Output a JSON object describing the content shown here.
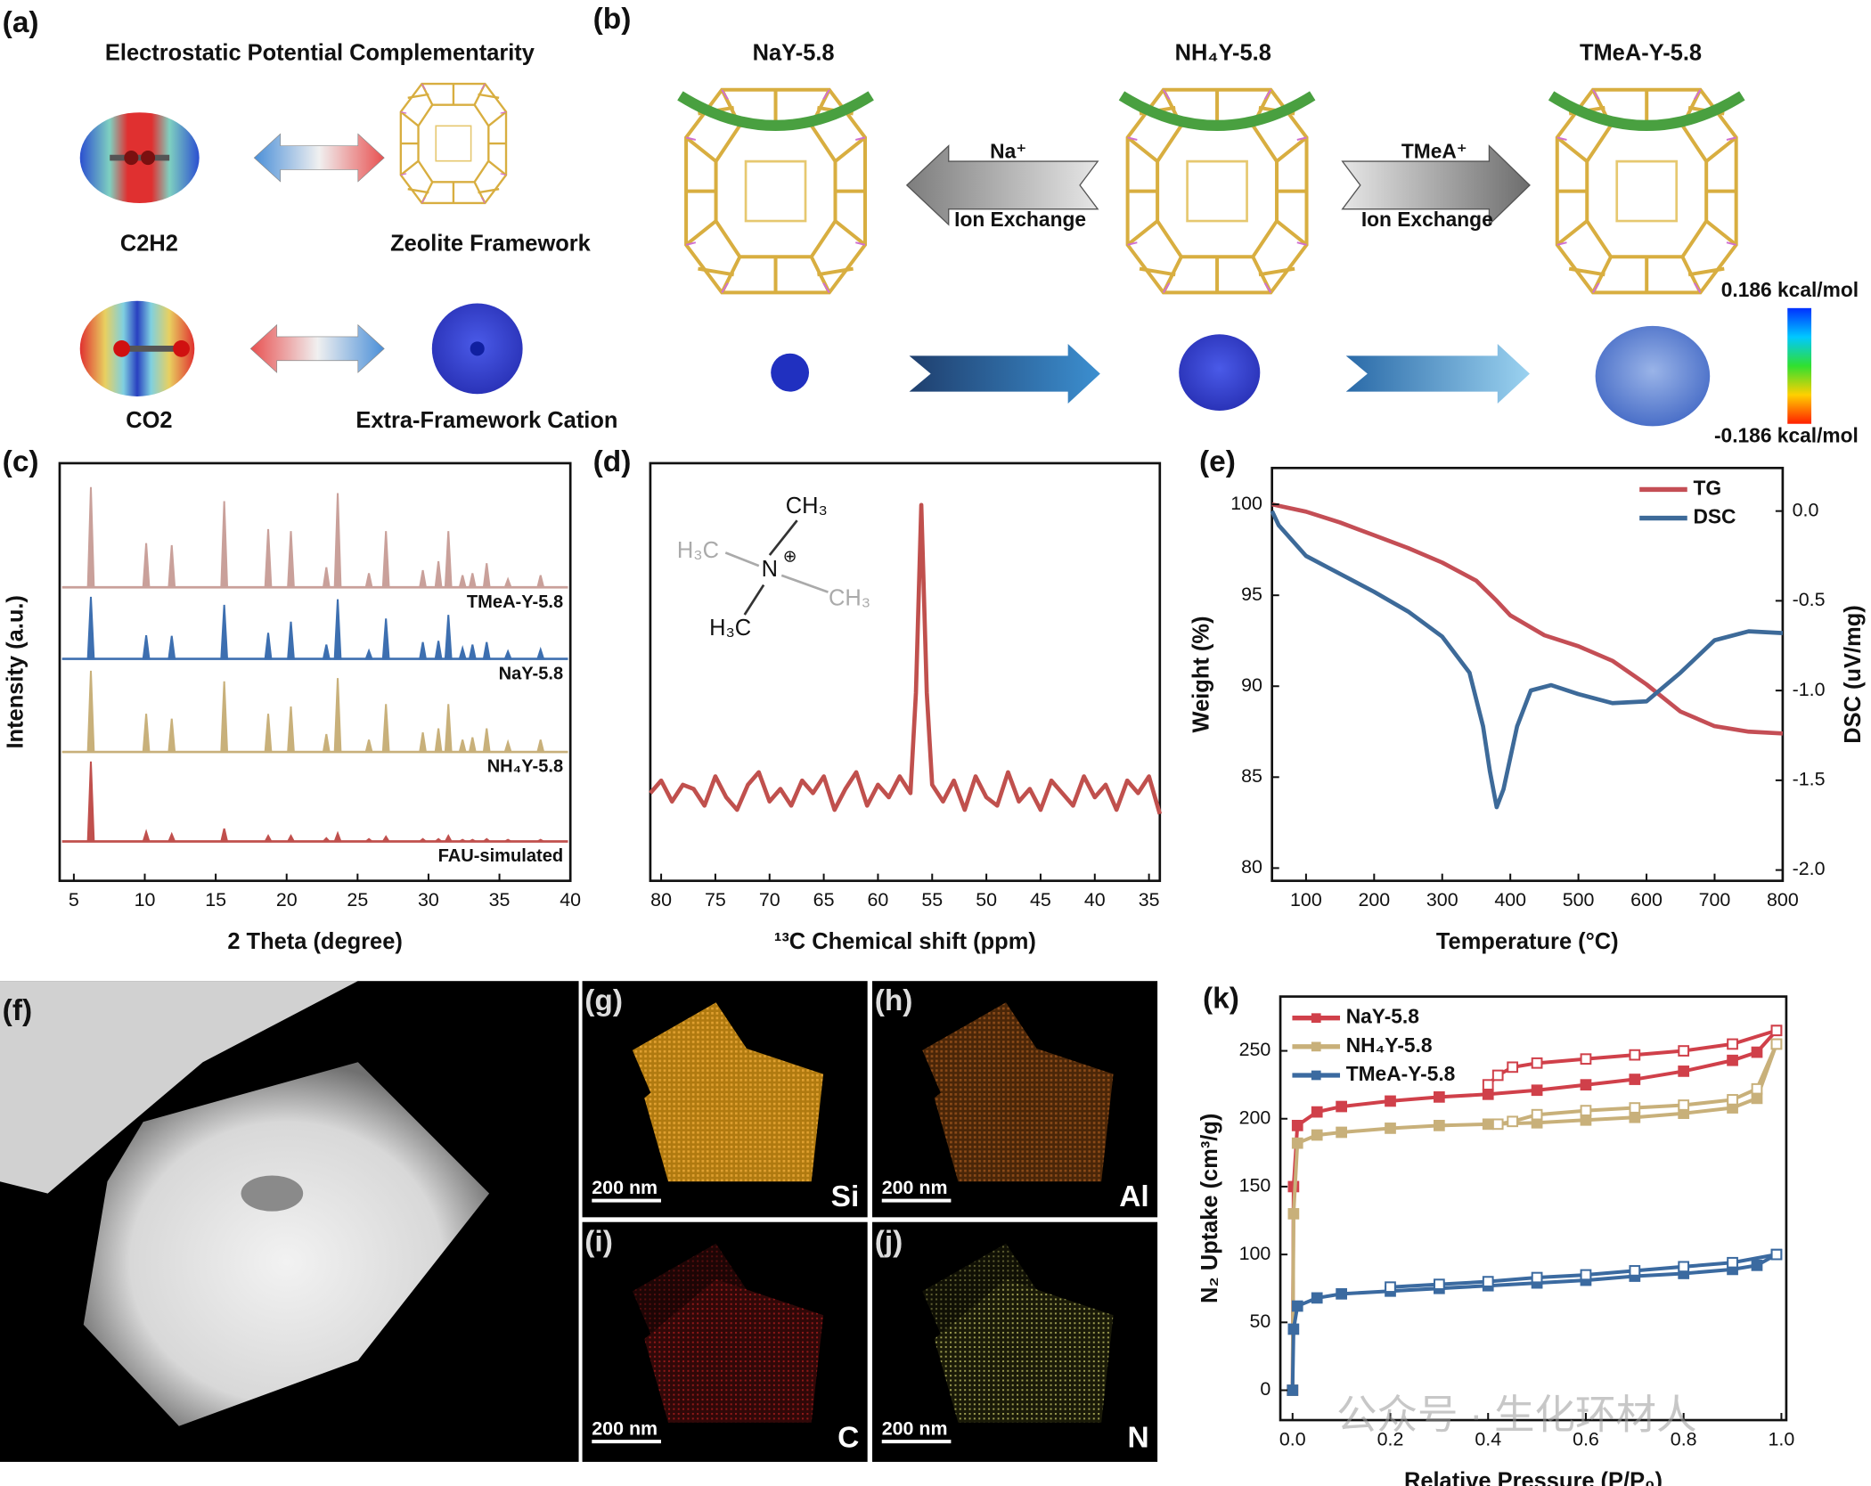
{
  "panels": {
    "a": {
      "label": "(a)",
      "title": "Electrostatic Potential Complementarity",
      "molecule_1": "C2H2",
      "framework": "Zeolite Framework",
      "molecule_2": "CO2",
      "cation": "Extra-Framework Cation"
    },
    "b": {
      "label": "(b)",
      "samples": [
        "NaY-5.8",
        "NH₄Y-5.8",
        "TMeA-Y-5.8"
      ],
      "ion_1": "Na⁺",
      "ion_2": "TMeA⁺",
      "exchange": [
        "Ion Exchange",
        "Ion Exchange"
      ],
      "colorbar_max": "0.186 kcal/mol",
      "colorbar_min": "-0.186 kcal/mol"
    },
    "c": {
      "label": "(c)"
    },
    "d": {
      "label": "(d)"
    },
    "e": {
      "label": "(e)"
    },
    "f": {
      "label": "(f)"
    },
    "k": {
      "label": "(k)"
    },
    "tiles": [
      {
        "label": "(g)",
        "element": "Si",
        "scale": "200 nm"
      },
      {
        "label": "(h)",
        "element": "Al",
        "scale": "200 nm"
      },
      {
        "label": "(i)",
        "element": "C",
        "scale": "200 nm"
      },
      {
        "label": "(j)",
        "element": "N",
        "scale": "200 nm"
      }
    ],
    "watermark": "公众号 · 生化环材人"
  },
  "chart_data": [
    {
      "type": "peaks",
      "xlabel": "2 Theta (degree)",
      "ylabel": "Intensity (a.u.)",
      "xlim": [
        4,
        40
      ],
      "xticks": [
        5,
        10,
        15,
        20,
        25,
        30,
        35,
        40
      ],
      "x": [
        6.2,
        10.1,
        11.9,
        15.6,
        18.7,
        20.3,
        22.8,
        23.6,
        25.8,
        27.0,
        29.6,
        30.7,
        31.4,
        32.4,
        33.1,
        34.1,
        35.6,
        37.9
      ],
      "series": [
        {
          "name": "TMeA-Y-5.8",
          "color": "#c9a09a",
          "values": [
            1,
            0.44,
            0.42,
            0.86,
            0.58,
            0.56,
            0.2,
            0.94,
            0.14,
            0.56,
            0.17,
            0.26,
            0.56,
            0.12,
            0.14,
            0.24,
            0.08,
            0.12
          ]
        },
        {
          "name": "NaY-5.8",
          "color": "#3d6fb0",
          "values": [
            1,
            0.38,
            0.37,
            0.87,
            0.42,
            0.6,
            0.23,
            0.96,
            0.13,
            0.65,
            0.27,
            0.29,
            0.71,
            0.17,
            0.23,
            0.27,
            0.12,
            0.15
          ]
        },
        {
          "name": "NH₄Y-5.8",
          "color": "#c8b07a",
          "values": [
            1,
            0.47,
            0.41,
            0.87,
            0.47,
            0.56,
            0.22,
            0.91,
            0.15,
            0.59,
            0.24,
            0.29,
            0.59,
            0.15,
            0.18,
            0.29,
            0.12,
            0.15
          ]
        },
        {
          "name": "FAU-simulated",
          "color": "#c0504d",
          "values": [
            1,
            0.12,
            0.09,
            0.16,
            0.07,
            0.07,
            0.04,
            0.1,
            0.03,
            0.06,
            0.03,
            0.03,
            0.07,
            0.02,
            0.02,
            0.03,
            0.02,
            0.02
          ]
        }
      ]
    },
    {
      "type": "line",
      "xlabel": "¹³C Chemical shift (ppm)",
      "xlim": [
        81,
        34
      ],
      "xticks": [
        80,
        75,
        70,
        65,
        60,
        55,
        50,
        45,
        40,
        35
      ],
      "ylim": [
        0,
        100
      ],
      "structure": [
        "CH₃",
        "H₃C",
        "N",
        "⊕",
        "CH₃",
        "H₃C"
      ],
      "x": [
        81,
        80,
        79,
        78,
        77,
        76,
        75,
        74,
        73,
        72,
        71,
        70,
        69,
        68,
        67,
        66,
        65,
        64,
        63,
        62,
        61,
        60,
        59,
        58,
        57,
        56.5,
        56,
        55.5,
        55,
        54,
        53,
        52,
        51,
        50,
        49,
        48,
        47,
        46,
        45,
        44,
        43,
        42,
        41,
        40,
        39,
        38,
        37,
        36,
        35,
        34
      ],
      "series": [
        {
          "color": "#c0504d",
          "values": [
            21,
            24,
            19,
            23,
            22,
            18,
            25,
            20,
            17,
            23,
            26,
            19,
            22,
            18,
            24,
            21,
            25,
            17,
            22,
            26,
            18,
            23,
            20,
            25,
            21,
            45,
            90,
            45,
            23,
            19,
            24,
            17,
            25,
            20,
            18,
            26,
            19,
            22,
            17,
            24,
            21,
            18,
            25,
            20,
            23,
            17,
            24,
            21,
            25,
            16
          ]
        }
      ]
    },
    {
      "type": "line",
      "xlabel": "Temperature (°C)",
      "ylabel": "Weight (%)",
      "y2label": "DSC (uV/mg)",
      "xlim": [
        50,
        800
      ],
      "xticks": [
        100,
        200,
        300,
        400,
        500,
        600,
        700,
        800
      ],
      "ylim": [
        79.3,
        102
      ],
      "yticks": [
        80,
        85,
        90,
        95,
        100
      ],
      "y2lim": [
        -2.06,
        0.24
      ],
      "y2ticks": [
        {
          "value": 0,
          "label": "0.0"
        },
        -0.5,
        {
          "value": -1,
          "label": "-1.0"
        },
        -1.5,
        {
          "value": -2,
          "label": "-2.0"
        }
      ],
      "legend": "upper right",
      "series": [
        {
          "name": "TG",
          "color": "#c44e55",
          "x": [
            50,
            100,
            150,
            200,
            250,
            300,
            350,
            380,
            400,
            450,
            500,
            550,
            600,
            650,
            700,
            750,
            800
          ],
          "values": [
            100,
            99.6,
            99,
            98.3,
            97.6,
            96.8,
            95.8,
            94.7,
            93.9,
            92.8,
            92.2,
            91.4,
            90.1,
            88.6,
            87.8,
            87.5,
            87.4
          ]
        },
        {
          "name": "DSC",
          "color": "#3d6a99",
          "axis": "y2",
          "x": [
            50,
            60,
            100,
            150,
            200,
            250,
            300,
            340,
            360,
            370,
            380,
            390,
            410,
            430,
            460,
            500,
            550,
            600,
            650,
            700,
            750,
            800
          ],
          "values": [
            0,
            -0.08,
            -0.25,
            -0.35,
            -0.45,
            -0.56,
            -0.7,
            -0.9,
            -1.2,
            -1.45,
            -1.65,
            -1.55,
            -1.2,
            -1.0,
            -0.97,
            -1.02,
            -1.07,
            -1.06,
            -0.9,
            -0.72,
            -0.67,
            -0.68
          ]
        }
      ]
    },
    {
      "type": "isotherm",
      "xlabel": "Relative Pressure (P/P₀)",
      "ylabel": "N₂ Uptake (cm³/g)",
      "xlim": [
        -0.025,
        1.01
      ],
      "xticks": [
        {
          "value": 0,
          "label": "0.0"
        },
        0.2,
        0.4,
        0.6,
        0.8,
        {
          "value": 1,
          "label": "1.0"
        }
      ],
      "ylim": [
        -22,
        290
      ],
      "yticks": [
        0,
        50,
        100,
        150,
        200,
        250
      ],
      "legend": "upper left",
      "series": [
        {
          "name": "NaY-5.8",
          "color": "#d0404a",
          "x": [
            0,
            0.002,
            0.01,
            0.05,
            0.1,
            0.2,
            0.3,
            0.4,
            0.5,
            0.6,
            0.7,
            0.8,
            0.9,
            0.95,
            0.99
          ],
          "values": [
            0,
            150,
            195,
            205,
            209,
            213,
            216,
            218,
            221,
            225,
            229,
            235,
            243,
            249,
            265
          ],
          "desorption_x": [
            0.99,
            0.9,
            0.8,
            0.7,
            0.6,
            0.5,
            0.45,
            0.42,
            0.4
          ],
          "desorption_values": [
            265,
            255,
            250,
            247,
            244,
            241,
            238,
            232,
            225
          ]
        },
        {
          "name": "NH₄Y-5.8",
          "color": "#c8b07a",
          "x": [
            0,
            0.002,
            0.01,
            0.05,
            0.1,
            0.2,
            0.3,
            0.4,
            0.5,
            0.6,
            0.7,
            0.8,
            0.9,
            0.95,
            0.99
          ],
          "values": [
            0,
            130,
            182,
            188,
            190,
            193,
            195,
            196,
            197,
            199,
            201,
            204,
            208,
            215,
            255
          ],
          "desorption_x": [
            0.99,
            0.95,
            0.9,
            0.8,
            0.7,
            0.6,
            0.5,
            0.45,
            0.42
          ],
          "desorption_values": [
            255,
            222,
            214,
            210,
            208,
            206,
            203,
            198,
            196
          ]
        },
        {
          "name": "TMeA-Y-5.8",
          "color": "#3b6aa0",
          "x": [
            0,
            0.002,
            0.01,
            0.05,
            0.1,
            0.2,
            0.3,
            0.4,
            0.5,
            0.6,
            0.7,
            0.8,
            0.9,
            0.95,
            0.99
          ],
          "values": [
            0,
            45,
            62,
            68,
            71,
            73,
            75,
            77,
            79,
            81,
            84,
            86,
            89,
            92,
            100
          ],
          "desorption_x": [
            0.99,
            0.9,
            0.8,
            0.7,
            0.6,
            0.5,
            0.4,
            0.3,
            0.2
          ],
          "desorption_values": [
            100,
            94,
            91,
            88,
            85,
            83,
            80,
            78,
            76
          ]
        }
      ]
    }
  ]
}
